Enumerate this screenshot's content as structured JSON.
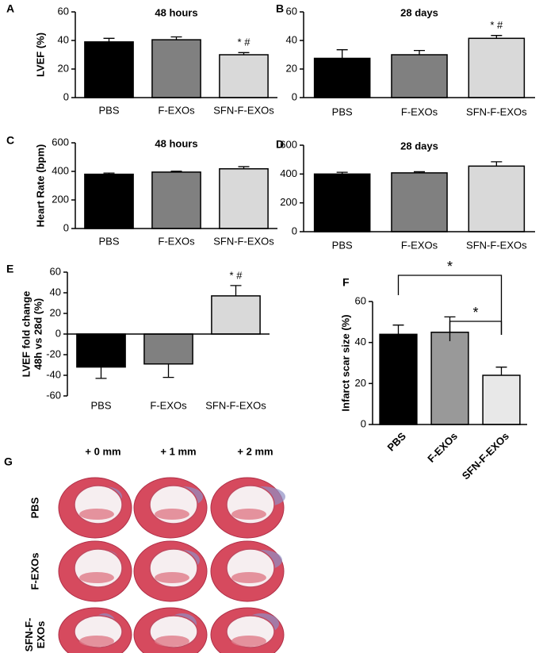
{
  "chart_data": [
    {
      "type": "bar",
      "label": "A",
      "title": "48 hours",
      "ylabel": "LVEF  (%)",
      "categories": [
        "PBS",
        "F-EXOs",
        "SFN-F-EXOs"
      ],
      "values": [
        39,
        40.5,
        30
      ],
      "errors": [
        2.5,
        2,
        1.5
      ],
      "colors": [
        "#000000",
        "#808080",
        "#d9d9d9"
      ],
      "ylim": [
        0,
        60
      ],
      "yticks": [
        0,
        20,
        40,
        60
      ],
      "annotations": [
        {
          "text": "* #",
          "category": "SFN-F-EXOs"
        }
      ]
    },
    {
      "type": "bar",
      "label": "B",
      "title": "28 days",
      "categories": [
        "PBS",
        "F-EXOs",
        "SFN-F-EXOs"
      ],
      "values": [
        27.5,
        30,
        41.5
      ],
      "errors": [
        6,
        3,
        2
      ],
      "colors": [
        "#000000",
        "#808080",
        "#d9d9d9"
      ],
      "ylim": [
        0,
        60
      ],
      "yticks": [
        0,
        20,
        40,
        60
      ],
      "annotations": [
        {
          "text": "* #",
          "category": "SFN-F-EXOs"
        }
      ]
    },
    {
      "type": "bar",
      "label": "C",
      "title": "48 hours",
      "ylabel": "Heart Rate (bpm)",
      "categories": [
        "PBS",
        "F-EXOs",
        "SFN-F-EXOs"
      ],
      "values": [
        380,
        395,
        418
      ],
      "errors": [
        8,
        6,
        15
      ],
      "colors": [
        "#000000",
        "#808080",
        "#d9d9d9"
      ],
      "ylim": [
        0,
        600
      ],
      "yticks": [
        0,
        200,
        400,
        600
      ]
    },
    {
      "type": "bar",
      "label": "D",
      "title": "28 days",
      "categories": [
        "PBS",
        "F-EXOs",
        "SFN-F-EXOs"
      ],
      "values": [
        400,
        408,
        455
      ],
      "errors": [
        12,
        8,
        30
      ],
      "colors": [
        "#000000",
        "#808080",
        "#d9d9d9"
      ],
      "ylim": [
        0,
        600
      ],
      "yticks": [
        0,
        200,
        400,
        600
      ]
    },
    {
      "type": "bar",
      "label": "E",
      "ylabel": [
        "LVEF fold change",
        "48h vs 28d (%)"
      ],
      "categories": [
        "PBS",
        "F-EXOs",
        "SFN-F-EXOs"
      ],
      "values": [
        -32,
        -29,
        37
      ],
      "errors": [
        11,
        13,
        10
      ],
      "colors": [
        "#000000",
        "#808080",
        "#d9d9d9"
      ],
      "ylim": [
        -60,
        60
      ],
      "yticks": [
        -60,
        -40,
        -20,
        0,
        20,
        40,
        60
      ],
      "annotations": [
        {
          "text": "* #",
          "category": "SFN-F-EXOs"
        }
      ]
    },
    {
      "type": "bar",
      "label": "F",
      "ylabel": "Infarct scar size (%)",
      "categories": [
        "PBS",
        "F-EXOs",
        "SFN-F-EXOs"
      ],
      "values": [
        44,
        45,
        24
      ],
      "errors": [
        4.5,
        7.5,
        4
      ],
      "colors": [
        "#000000",
        "#999999",
        "#e8e8e8"
      ],
      "ylim": [
        0,
        60
      ],
      "yticks": [
        0,
        20,
        40,
        60
      ],
      "brackets": [
        {
          "from": "PBS",
          "to": "SFN-F-EXOs",
          "text": "*"
        },
        {
          "from": "F-EXOs",
          "to": "SFN-F-EXOs",
          "text": "*"
        }
      ]
    }
  ],
  "sections": {
    "label": "G",
    "columns": [
      "+ 0 mm",
      "+ 1 mm",
      "+ 2 mm"
    ],
    "rows": [
      [
        "PBS"
      ],
      [
        "F-EXOs"
      ],
      [
        "SFN-F-",
        "EXOs"
      ]
    ]
  }
}
